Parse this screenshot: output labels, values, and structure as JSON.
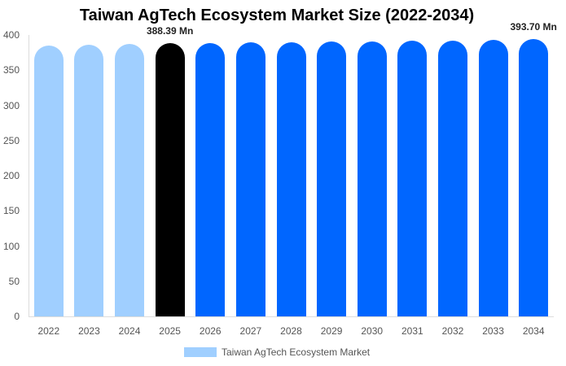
{
  "chart_data": {
    "type": "bar",
    "title": "Taiwan AgTech Ecosystem Market Size (2022-2034)",
    "xlabel": "",
    "ylabel": "",
    "ylim": [
      0,
      400
    ],
    "yticks": [
      0,
      50,
      100,
      150,
      200,
      250,
      300,
      350,
      400
    ],
    "categories": [
      "2022",
      "2023",
      "2024",
      "2025",
      "2026",
      "2027",
      "2028",
      "2029",
      "2030",
      "2031",
      "2032",
      "2033",
      "2034"
    ],
    "series": [
      {
        "name": "Taiwan AgTech Ecosystem Market",
        "values": [
          384.5,
          385.6,
          386.9,
          388.39,
          388.9,
          389.5,
          390.1,
          390.7,
          391.3,
          391.9,
          392.5,
          393.1,
          393.7
        ]
      }
    ],
    "bar_colors": [
      "#a0cfff",
      "#a0cfff",
      "#a0cfff",
      "#000000",
      "#0066ff",
      "#0066ff",
      "#0066ff",
      "#0066ff",
      "#0066ff",
      "#0066ff",
      "#0066ff",
      "#0066ff",
      "#0066ff"
    ],
    "annotations": [
      {
        "category": "2025",
        "text": "388.39 Mn"
      },
      {
        "category": "2034",
        "text": "393.70 Mn"
      }
    ],
    "grid": false,
    "legend_position": "bottom"
  },
  "legend": {
    "label": "Taiwan AgTech Ecosystem Market",
    "color": "#a0cfff"
  }
}
